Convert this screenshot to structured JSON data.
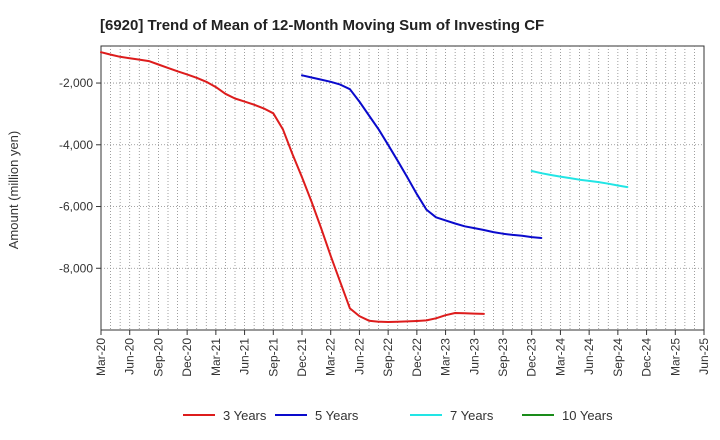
{
  "chart_data": {
    "type": "line",
    "title": "[6920]  Trend of Mean of 12-Month Moving Sum of Investing CF",
    "xlabel": "",
    "ylabel": "Amount (million yen)",
    "ylim": [
      -10000,
      -800
    ],
    "yticks": [
      -2000,
      -4000,
      -6000,
      -8000
    ],
    "ytick_labels": [
      "-2,000",
      "-4,000",
      "-6,000",
      "-8,000"
    ],
    "xticks": [
      "Mar-20",
      "Jun-20",
      "Sep-20",
      "Dec-20",
      "Mar-21",
      "Jun-21",
      "Sep-21",
      "Dec-21",
      "Mar-22",
      "Jun-22",
      "Sep-22",
      "Dec-22",
      "Mar-23",
      "Jun-23",
      "Sep-23",
      "Dec-23",
      "Mar-24",
      "Jun-24",
      "Sep-24",
      "Dec-24",
      "Mar-25",
      "Jun-25"
    ],
    "grid": true,
    "legend_position": "bottom",
    "series": [
      {
        "name": "3 Years",
        "color": "#dd1c1c",
        "start_index": 0,
        "values": [
          -1000,
          -1080,
          -1150,
          -1200,
          -1240,
          -1290,
          -1400,
          -1510,
          -1620,
          -1720,
          -1830,
          -1960,
          -2130,
          -2350,
          -2500,
          -2600,
          -2700,
          -2820,
          -2980,
          -3500,
          -4300,
          -5050,
          -5850,
          -6700,
          -7600,
          -8450,
          -9300,
          -9550,
          -9700,
          -9730,
          -9740,
          -9730,
          -9720,
          -9710,
          -9690,
          -9620,
          -9520,
          -9450,
          -9460,
          -9470,
          -9480
        ]
      },
      {
        "name": "5 Years",
        "color": "#0a0acc",
        "start_index": 21,
        "values": [
          -1750,
          -1820,
          -1890,
          -1960,
          -2050,
          -2200,
          -2600,
          -3050,
          -3500,
          -4000,
          -4520,
          -5050,
          -5600,
          -6100,
          -6350,
          -6450,
          -6550,
          -6640,
          -6700,
          -6760,
          -6830,
          -6880,
          -6920,
          -6950,
          -6990,
          -7020
        ]
      },
      {
        "name": "7 Years",
        "color": "#22e5e5",
        "start_index": 45,
        "values": [
          -4850,
          -4920,
          -4980,
          -5030,
          -5080,
          -5130,
          -5170,
          -5210,
          -5260,
          -5320,
          -5370
        ]
      },
      {
        "name": "10 Years",
        "color": "#1a8c1a",
        "start_index": 0,
        "values": []
      }
    ]
  }
}
